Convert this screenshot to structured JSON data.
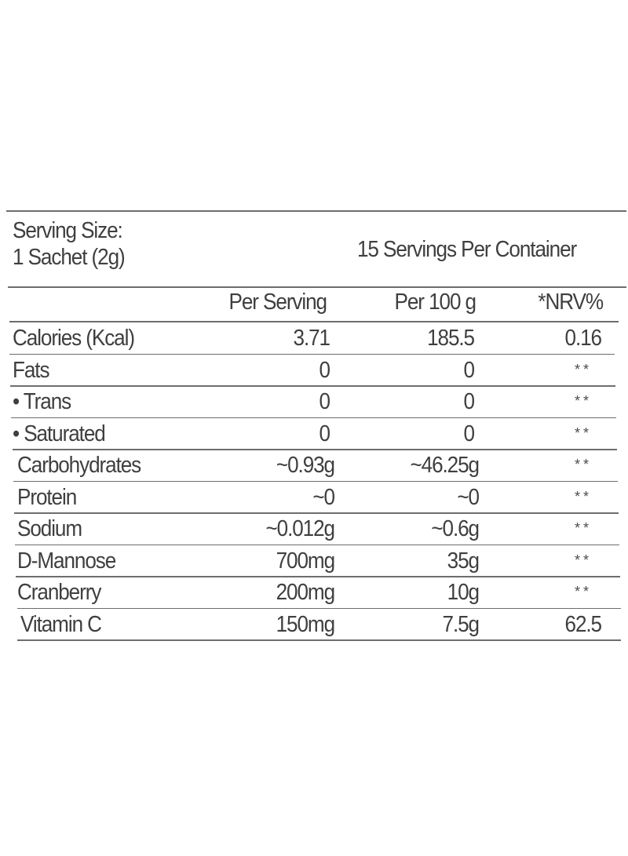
{
  "header": {
    "serving_size_line1": "Serving Size:",
    "serving_size_line2": "1 Sachet (2g)",
    "servings_per_container": "15 Servings Per Container"
  },
  "columns": {
    "per_serving": "Per Serving",
    "per_100g": "Per 100 g",
    "nrv": "*NRV%"
  },
  "rows": [
    {
      "name": "Calories (Kcal)",
      "per_serving": "3.71",
      "per_100g": "185.5",
      "nrv": "0.16"
    },
    {
      "name": "Fats",
      "per_serving": "0",
      "per_100g": "0",
      "nrv": "**"
    },
    {
      "name": "• Trans",
      "per_serving": "0",
      "per_100g": "0",
      "nrv": "**"
    },
    {
      "name": "• Saturated",
      "per_serving": "0",
      "per_100g": "0",
      "nrv": "**"
    },
    {
      "name": "Carbohydrates",
      "per_serving": "~0.93g",
      "per_100g": "~46.25g",
      "nrv": "**"
    },
    {
      "name": "Protein",
      "per_serving": "~0",
      "per_100g": "~0",
      "nrv": "**"
    },
    {
      "name": "Sodium",
      "per_serving": "~0.012g",
      "per_100g": "~0.6g",
      "nrv": "**"
    },
    {
      "name": "D-Mannose",
      "per_serving": "700mg",
      "per_100g": "35g",
      "nrv": "**"
    },
    {
      "name": "Cranberry",
      "per_serving": "200mg",
      "per_100g": "10g",
      "nrv": "**"
    },
    {
      "name": "Vitamin C",
      "per_serving": "150mg",
      "per_100g": "7.5g",
      "nrv": "62.5"
    }
  ]
}
